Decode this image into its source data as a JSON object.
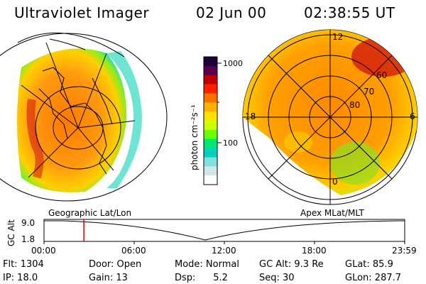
{
  "header": {
    "instrument": "Ultraviolet Imager",
    "date": "02 Jun 00",
    "time": "02:38:55 UT"
  },
  "colorbar": {
    "unit_label": "photon cm⁻²s⁻¹",
    "ticks": [
      "1000",
      "100"
    ],
    "scale": "log",
    "colors": [
      "#1a0033",
      "#5a0050",
      "#c00000",
      "#ff2000",
      "#ff7000",
      "#ffb000",
      "#ffe000",
      "#ccff00",
      "#66ff00",
      "#00e676",
      "#00d0c0",
      "#80e0e0",
      "#d0e8e8",
      "#ffffff"
    ]
  },
  "polar_map": {
    "lat_labels": [
      "60",
      "70",
      "80"
    ],
    "mlt_labels": [
      "18",
      "6",
      "0",
      "12"
    ]
  },
  "panel_labels": {
    "left": "Geographic Lat/Lon",
    "right": "Apex MLat/MLT"
  },
  "altitude_plot": {
    "ylabel": "GC Alt",
    "yticks": [
      "9.0",
      "1.8"
    ],
    "xticks": [
      "00:00",
      "06:00",
      "12:00",
      "18:00",
      "23:59"
    ],
    "cursor_time_hours": 2.65,
    "cursor_color": "#e00000"
  },
  "info": {
    "row1": [
      "Flt: 1304",
      "Door: Open",
      "Mode: Normal",
      "GC Alt: 9.3 Re",
      "GLat: 85.9"
    ],
    "row2": [
      "IP: 18.0",
      "Gain: 13",
      "Dsp:      5.2",
      "Seq: 30",
      "GLon: 287.7"
    ]
  }
}
